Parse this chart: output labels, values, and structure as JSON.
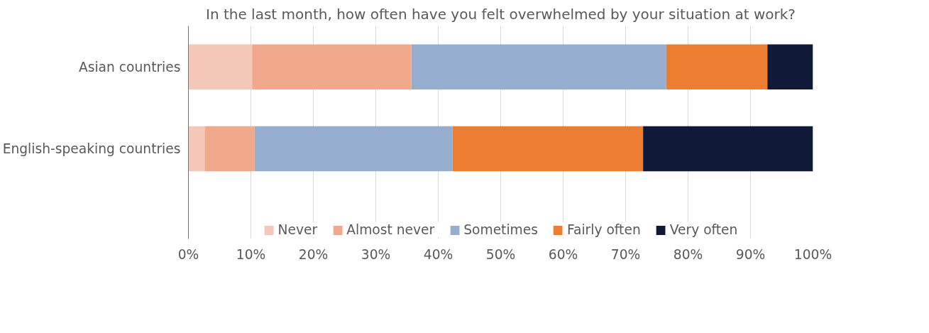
{
  "chart_data": {
    "type": "bar",
    "orientation": "horizontal",
    "stacked": true,
    "title": "In the last month, how often have you felt overwhelmed by your situation at work?",
    "categories": [
      "Asian countries",
      "English-speaking countries"
    ],
    "series": [
      {
        "name": "Never",
        "color": "#f4c7b8",
        "values": [
          10.2,
          2.6
        ]
      },
      {
        "name": "Almost never",
        "color": "#f0a98a",
        "values": [
          25.5,
          8.0
        ]
      },
      {
        "name": "Sometimes",
        "color": "#95adcf",
        "values": [
          40.8,
          31.7
        ]
      },
      {
        "name": "Fairly often",
        "color": "#ed7d31",
        "values": [
          16.2,
          30.5
        ]
      },
      {
        "name": "Very often",
        "color": "#101a38",
        "values": [
          7.3,
          27.2
        ]
      }
    ],
    "xlim": [
      0,
      100
    ],
    "xticks": [
      {
        "value": 0,
        "label": "0%"
      },
      {
        "value": 10,
        "label": "10%"
      },
      {
        "value": 20,
        "label": "20%"
      },
      {
        "value": 30,
        "label": "30%"
      },
      {
        "value": 40,
        "label": "40%"
      },
      {
        "value": 50,
        "label": "50%"
      },
      {
        "value": 60,
        "label": "60%"
      },
      {
        "value": 70,
        "label": "70%"
      },
      {
        "value": 80,
        "label": "80%"
      },
      {
        "value": 90,
        "label": "90%"
      },
      {
        "value": 100,
        "label": "100%"
      }
    ],
    "grid": "x",
    "legend": "bottom"
  }
}
